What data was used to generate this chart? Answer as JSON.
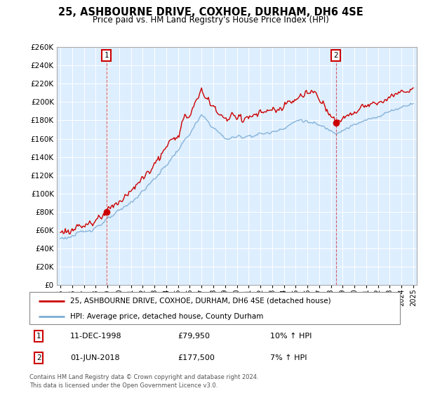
{
  "title": "25, ASHBOURNE DRIVE, COXHOE, DURHAM, DH6 4SE",
  "subtitle": "Price paid vs. HM Land Registry's House Price Index (HPI)",
  "legend_line1": "25, ASHBOURNE DRIVE, COXHOE, DURHAM, DH6 4SE (detached house)",
  "legend_line2": "HPI: Average price, detached house, County Durham",
  "annotation1_date": "11-DEC-1998",
  "annotation1_price": "£79,950",
  "annotation1_hpi": "10% ↑ HPI",
  "annotation2_date": "01-JUN-2018",
  "annotation2_price": "£177,500",
  "annotation2_hpi": "7% ↑ HPI",
  "footer": "Contains HM Land Registry data © Crown copyright and database right 2024.\nThis data is licensed under the Open Government Licence v3.0.",
  "red_color": "#cc0000",
  "blue_color": "#7dadd4",
  "chart_bg": "#ddeeff",
  "ylim_max": 260000,
  "ytick_step": 20000,
  "background_color": "#ffffff",
  "grid_color": "#ffffff",
  "year_start": 1995,
  "year_end": 2025
}
